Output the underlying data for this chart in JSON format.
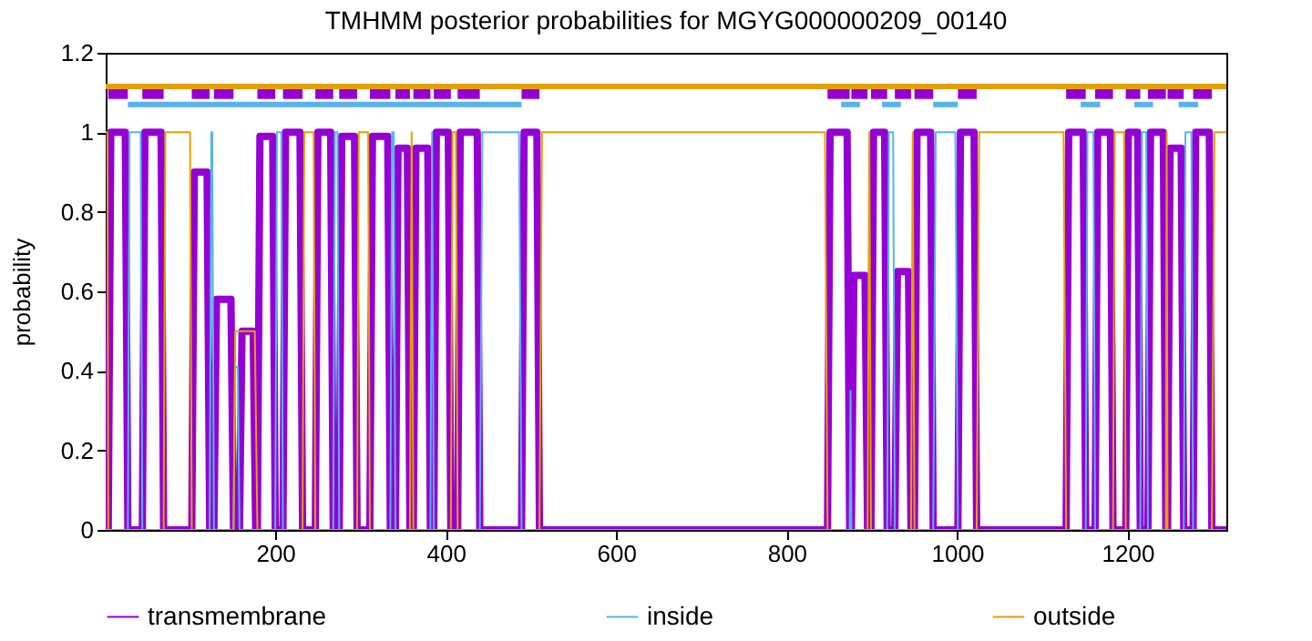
{
  "chart_data": {
    "type": "line",
    "title": "TMHMM posterior probabilities for MGYG000000209_00140",
    "ylabel": "probability",
    "xlim": [
      1,
      1316
    ],
    "xticks": [
      200,
      400,
      600,
      800,
      1000,
      1200
    ],
    "ylim": [
      0,
      1.2
    ],
    "yticks": [
      0,
      0.2,
      0.4,
      0.6,
      0.8,
      1,
      1.2
    ],
    "grid": false,
    "legend": "bottom",
    "marker": "none",
    "line_style": "solid",
    "series": [
      {
        "name": "transmembrane",
        "color": "#9400d3",
        "x": [
          1,
          4,
          7,
          24,
          27,
          44,
          47,
          66,
          69,
          102,
          105,
          120,
          123,
          128,
          131,
          148,
          151,
          158,
          161,
          174,
          177,
          179,
          182,
          197,
          200,
          209,
          212,
          229,
          232,
          247,
          250,
          265,
          268,
          275,
          278,
          293,
          296,
          311,
          314,
          332,
          335,
          341,
          344,
          355,
          358,
          362,
          365,
          379,
          382,
          386,
          389,
          403,
          406,
          414,
          417,
          437,
          440,
          489,
          492,
          507,
          510,
          848,
          851,
          871,
          874,
          876,
          879,
          892,
          895,
          899,
          902,
          915,
          918,
          927,
          930,
          943,
          946,
          950,
          953,
          969,
          972,
          1001,
          1004,
          1020,
          1023,
          1128,
          1131,
          1148,
          1151,
          1162,
          1165,
          1180,
          1183,
          1198,
          1201,
          1212,
          1215,
          1224,
          1227,
          1242,
          1245,
          1247,
          1250,
          1263,
          1266,
          1277,
          1280,
          1296,
          1299,
          1316
        ],
        "values": [
          0,
          0,
          1,
          1,
          0,
          0,
          1,
          1,
          0,
          0,
          0.9,
          0.9,
          0,
          0,
          0.58,
          0.58,
          0,
          0,
          0.5,
          0.5,
          0,
          0,
          0.99,
          0.99,
          0,
          0,
          1,
          1,
          0,
          0,
          1,
          1,
          0,
          0,
          0.99,
          0.99,
          0,
          0,
          0.99,
          0.99,
          0,
          0,
          0.96,
          0.96,
          0,
          0,
          0.96,
          0.96,
          0,
          0,
          1,
          1,
          0,
          0,
          1,
          1,
          0,
          0,
          1,
          1,
          0,
          0,
          1,
          1,
          0,
          0,
          0.64,
          0.64,
          0,
          0,
          1,
          1,
          0,
          0,
          0.65,
          0.65,
          0,
          0,
          1,
          1,
          0,
          0,
          1,
          1,
          0,
          0,
          1,
          1,
          0,
          0,
          1,
          1,
          0,
          0,
          1,
          1,
          0,
          0,
          1,
          1,
          0,
          0,
          0.96,
          0.96,
          0,
          0,
          1,
          1,
          0,
          0
        ]
      },
      {
        "name": "inside",
        "color": "#56b4e9",
        "x": [
          1,
          27,
          29,
          42,
          44,
          123,
          125,
          126,
          128,
          151,
          153,
          156,
          158,
          200,
          202,
          207,
          209,
          268,
          270,
          273,
          275,
          335,
          337,
          339,
          341,
          382,
          384,
          386,
          440,
          443,
          486,
          489,
          874,
          875,
          876,
          918,
          920,
          925,
          927,
          972,
          975,
          998,
          1001,
          1151,
          1153,
          1160,
          1162,
          1215,
          1217,
          1222,
          1224,
          1266,
          1268,
          1275,
          1277,
          1316
        ],
        "values": [
          0,
          0,
          1,
          1,
          0,
          0,
          1,
          1,
          0,
          0,
          0.41,
          0.41,
          0,
          0,
          1,
          1,
          0,
          0,
          1,
          1,
          0,
          0,
          1,
          1,
          0,
          0,
          1,
          0,
          0,
          1,
          1,
          0,
          0,
          0.35,
          0,
          0,
          1,
          1,
          0,
          0,
          1,
          1,
          0,
          0,
          1,
          1,
          0,
          0,
          1,
          1,
          0,
          0,
          1,
          1,
          0,
          0
        ]
      },
      {
        "name": "outside",
        "color": "#e69f00",
        "x": [
          1,
          3,
          4,
          69,
          71,
          100,
          102,
          151,
          153,
          176,
          179,
          232,
          234,
          245,
          247,
          296,
          298,
          309,
          311,
          358,
          360,
          362,
          406,
          408,
          412,
          414,
          510,
          513,
          845,
          848,
          895,
          897,
          899,
          946,
          948,
          950,
          1023,
          1026,
          1125,
          1128,
          1183,
          1185,
          1196,
          1198,
          1245,
          1246,
          1247,
          1299,
          1302,
          1316
        ],
        "values": [
          1,
          1,
          0,
          0,
          1,
          1,
          0,
          0,
          0.5,
          0.5,
          0,
          0,
          1,
          1,
          0,
          0,
          1,
          1,
          0,
          0,
          1,
          0,
          0,
          1,
          1,
          0,
          0,
          1,
          1,
          0,
          0,
          1,
          0,
          0,
          1,
          0,
          0,
          1,
          1,
          0,
          0,
          1,
          1,
          0,
          0,
          1,
          0,
          0,
          1,
          1
        ]
      },
      {
        "color": "#9400d3",
        "x": [
          4,
          27,
          28,
          44,
          69,
          70,
          102,
          123,
          124,
          128,
          151,
          152,
          179,
          200,
          201,
          209,
          232,
          233,
          247,
          268,
          269,
          275,
          296,
          297,
          311,
          335,
          336,
          341,
          358,
          359,
          362,
          382,
          383,
          386,
          406,
          407,
          414,
          440,
          441,
          489,
          510,
          511,
          848,
          874,
          875,
          876,
          895,
          896,
          899,
          918,
          919,
          927,
          946,
          947,
          950,
          972,
          973,
          1001,
          1023,
          1024,
          1128,
          1151,
          1152,
          1162,
          1183,
          1184,
          1198,
          1215,
          1216,
          1224,
          1245,
          1246,
          1247,
          1266,
          1267,
          1277,
          1299
        ],
        "values": [
          1.1,
          1.1,
          null,
          1.1,
          1.1,
          null,
          1.1,
          1.1,
          null,
          1.1,
          1.1,
          null,
          1.1,
          1.1,
          null,
          1.1,
          1.1,
          null,
          1.1,
          1.1,
          null,
          1.1,
          1.1,
          null,
          1.1,
          1.1,
          null,
          1.1,
          1.1,
          null,
          1.1,
          1.1,
          null,
          1.1,
          1.1,
          null,
          1.1,
          1.1,
          null,
          1.1,
          1.1,
          null,
          1.1,
          1.1,
          null,
          1.1,
          1.1,
          null,
          1.1,
          1.1,
          null,
          1.1,
          1.1,
          null,
          1.1,
          1.1,
          null,
          1.1,
          1.1,
          null,
          1.1,
          1.1,
          null,
          1.1,
          1.1,
          null,
          1.1,
          1.1,
          null,
          1.1,
          1.1,
          null,
          1.1,
          1.1,
          null,
          1.1,
          1.1
        ]
      },
      {
        "color": "#56b4e9",
        "x": [
          27,
          489,
          490,
          864,
          886,
          887,
          912,
          934,
          935,
          972,
          1001,
          1002,
          1145,
          1168,
          1169,
          1208,
          1230,
          1231,
          1260,
          1283
        ],
        "values": [
          1.07,
          1.07,
          null,
          1.07,
          1.07,
          null,
          1.07,
          1.07,
          null,
          1.07,
          1.07,
          null,
          1.07,
          1.07,
          null,
          1.07,
          1.07,
          null,
          1.07,
          1.07
        ]
      },
      {
        "color": "#e69f00",
        "x": [
          1,
          1316
        ],
        "values": [
          1.115,
          1.115
        ]
      }
    ]
  }
}
